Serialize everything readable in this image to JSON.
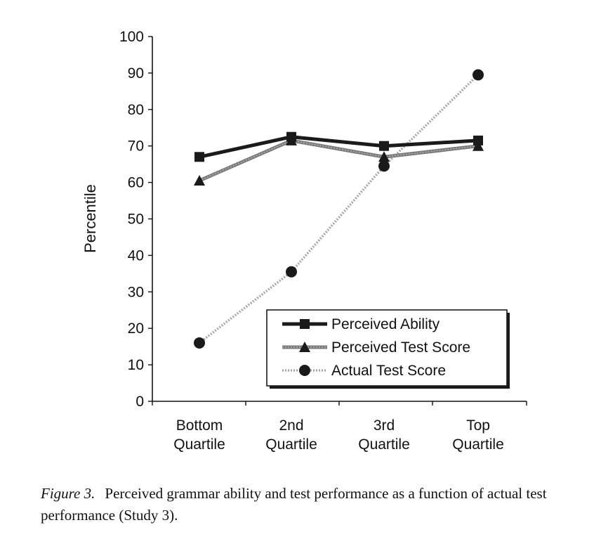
{
  "chart_data": {
    "type": "line",
    "title": "",
    "xlabel": "",
    "ylabel": "Percentile",
    "ylim": [
      0,
      100
    ],
    "yticks": [
      "0",
      "10",
      "20",
      "30",
      "40",
      "50",
      "60",
      "70",
      "80",
      "90",
      "100"
    ],
    "categories": [
      [
        "Bottom",
        "Quartile"
      ],
      [
        "2nd",
        "Quartile"
      ],
      [
        "3rd",
        "Quartile"
      ],
      [
        "Top",
        "Quartile"
      ]
    ],
    "legend_position": "bottom-right",
    "series": [
      {
        "name": "Perceived Ability",
        "values": [
          67,
          72.5,
          70,
          71.5
        ],
        "marker": "square",
        "color": "#1a1a1a",
        "style": "solid"
      },
      {
        "name": "Perceived Test Score",
        "values": [
          60.5,
          71.5,
          67,
          70
        ],
        "marker": "triangle",
        "color": "#7a7a7a",
        "style": "dotted-gray"
      },
      {
        "name": "Actual Test Score",
        "values": [
          16,
          35.5,
          64.5,
          89.5
        ],
        "marker": "circle",
        "color": "#a8a8a8",
        "style": "light-dotted"
      }
    ]
  },
  "caption": {
    "label": "Figure 3.",
    "text": "Perceived grammar ability and test performance as a function of actual test performance (Study 3)."
  }
}
